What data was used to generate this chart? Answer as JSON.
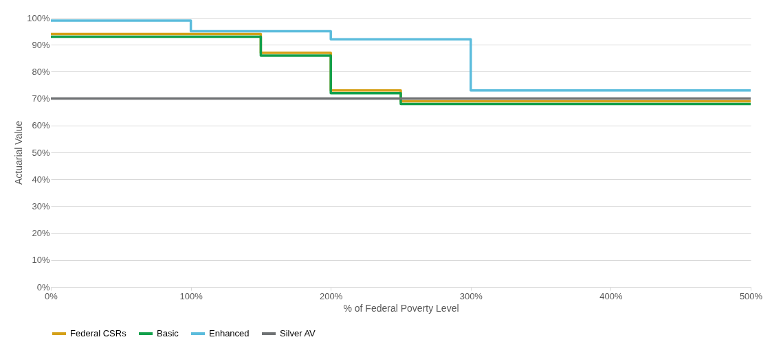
{
  "chart_data": {
    "type": "step",
    "xlabel": "% of Federal Poverty Level",
    "ylabel": "Actuarial Value",
    "xlim": [
      0,
      500
    ],
    "ylim": [
      0,
      100
    ],
    "xticks": [
      {
        "value": 0,
        "label": "0%"
      },
      {
        "value": 100,
        "label": "100%"
      },
      {
        "value": 200,
        "label": "200%"
      },
      {
        "value": 300,
        "label": "300%"
      },
      {
        "value": 400,
        "label": "400%"
      },
      {
        "value": 500,
        "label": "500%"
      }
    ],
    "yticks": [
      {
        "value": 0,
        "label": "0%"
      },
      {
        "value": 10,
        "label": "10%"
      },
      {
        "value": 20,
        "label": "20%"
      },
      {
        "value": 30,
        "label": "30%"
      },
      {
        "value": 40,
        "label": "40%"
      },
      {
        "value": 50,
        "label": "50%"
      },
      {
        "value": 60,
        "label": "60%"
      },
      {
        "value": 70,
        "label": "70%"
      },
      {
        "value": 80,
        "label": "80%"
      },
      {
        "value": 90,
        "label": "90%"
      },
      {
        "value": 100,
        "label": "100%"
      }
    ],
    "grid": "y",
    "legend": "bottom",
    "line_style": "solid",
    "marker": "none",
    "series": [
      {
        "name": "Federal CSRs",
        "color": "#d4a017",
        "x": [
          0,
          150,
          200,
          250,
          500
        ],
        "values": [
          94,
          87,
          73,
          69,
          69
        ]
      },
      {
        "name": "Basic",
        "color": "#12a04b",
        "x": [
          0,
          150,
          200,
          250,
          500
        ],
        "values": [
          93,
          86,
          72,
          68,
          68
        ]
      },
      {
        "name": "Enhanced",
        "color": "#5bbcdc",
        "x": [
          0,
          100,
          200,
          300,
          500
        ],
        "values": [
          99,
          95,
          92,
          73,
          73
        ]
      },
      {
        "name": "Silver AV",
        "color": "#6f7274",
        "x": [
          0,
          500
        ],
        "values": [
          70,
          70
        ]
      }
    ]
  }
}
